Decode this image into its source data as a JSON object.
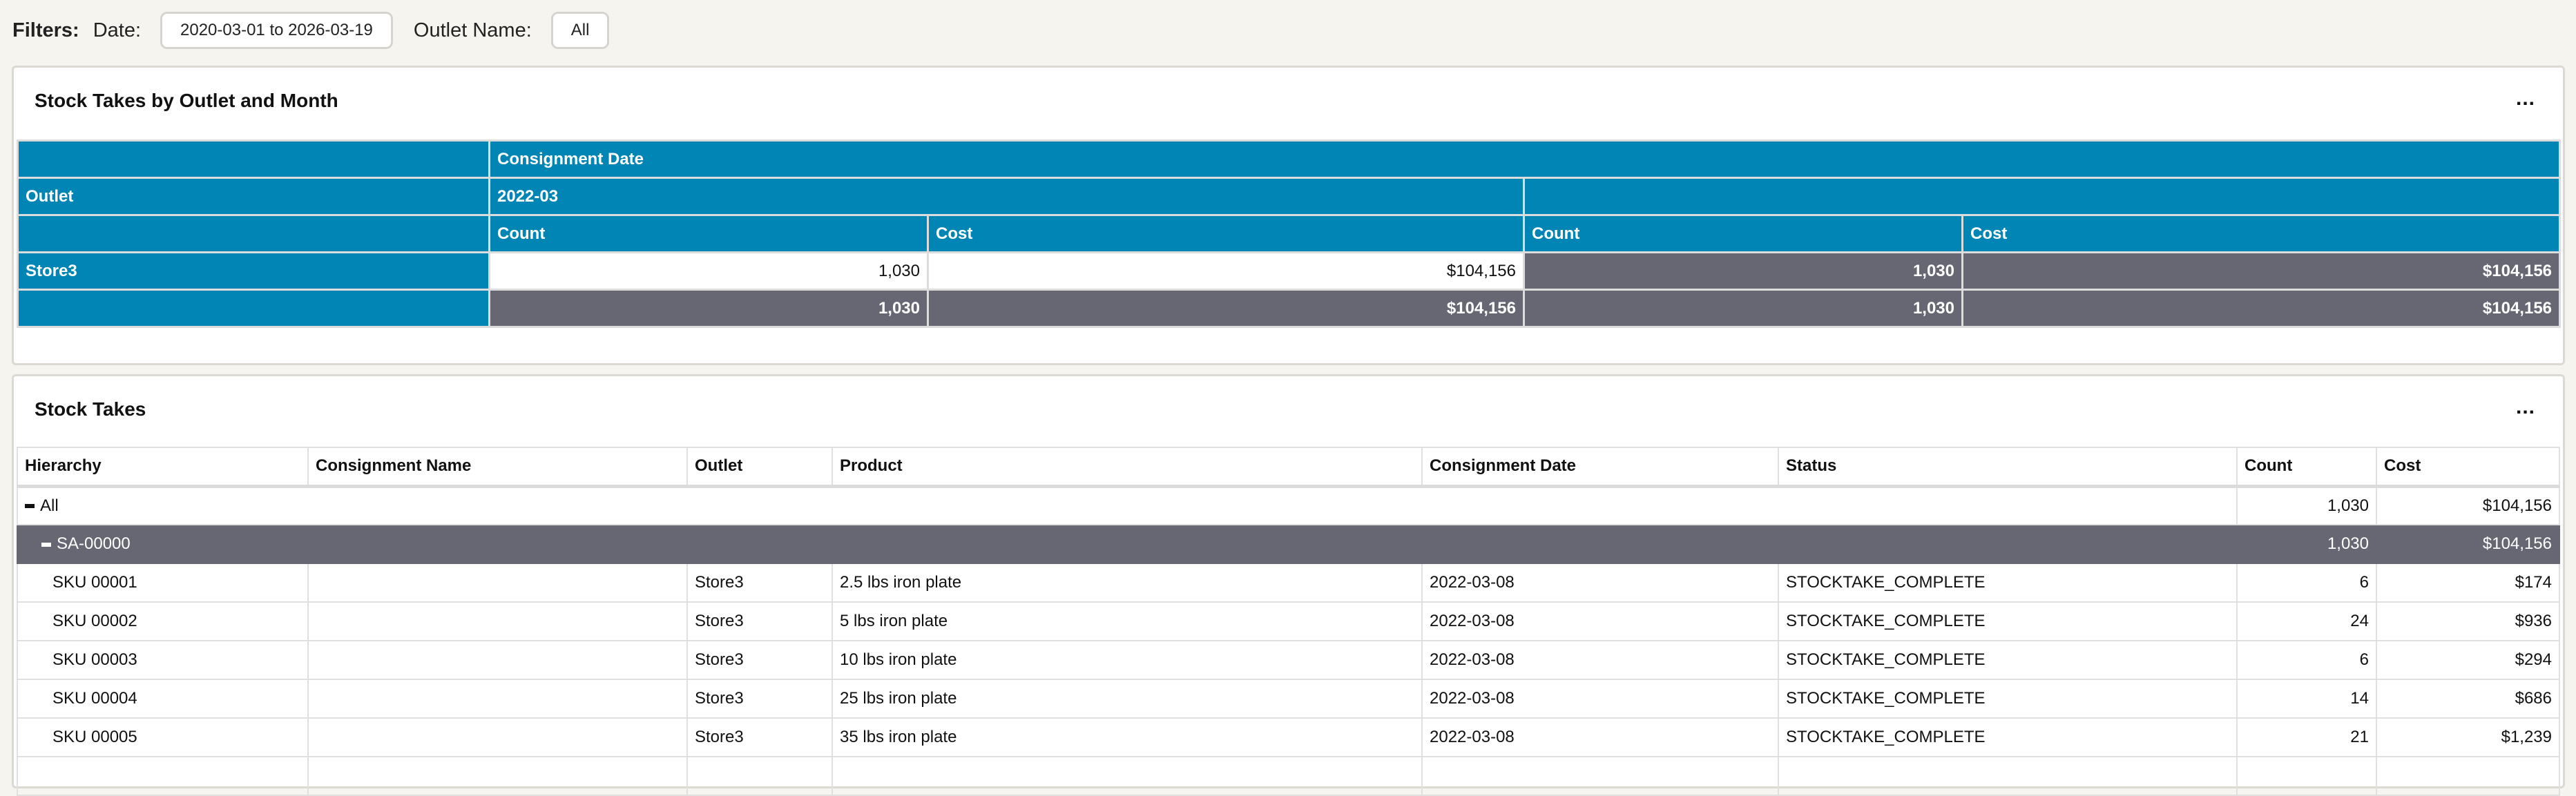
{
  "filters": {
    "title": "Filters:",
    "date_label": "Date:",
    "date_value": "2020-03-01 to 2026-03-19",
    "outlet_label": "Outlet Name:",
    "outlet_value": "All"
  },
  "pivot_panel": {
    "title": "Stock Takes by Outlet and Month",
    "menu": "...",
    "header_group": "Consignment Date",
    "row_header": "Outlet",
    "month": "2022-03",
    "count_label": "Count",
    "cost_label": "Cost",
    "rows": [
      {
        "outlet": "Store3",
        "count": "1,030",
        "cost": "$104,156",
        "total_count": "1,030",
        "total_cost": "$104,156"
      }
    ],
    "totals": {
      "count": "1,030",
      "cost": "$104,156",
      "total_count": "1,030",
      "total_cost": "$104,156"
    }
  },
  "table_panel": {
    "title": "Stock Takes",
    "menu": "...",
    "columns": [
      "Hierarchy",
      "Consignment Name",
      "Outlet",
      "Product",
      "Consignment Date",
      "Status",
      "Count",
      "Cost"
    ],
    "all_row": {
      "label": "All",
      "count": "1,030",
      "cost": "$104,156"
    },
    "group_row": {
      "label": "SA-00000",
      "count": "1,030",
      "cost": "$104,156"
    },
    "rows": [
      {
        "sku": "SKU 00001",
        "name": "",
        "outlet": "Store3",
        "product": "2.5 lbs iron plate",
        "date": "2022-03-08",
        "status": "STOCKTAKE_COMPLETE",
        "count": "6",
        "cost": "$174"
      },
      {
        "sku": "SKU 00002",
        "name": "",
        "outlet": "Store3",
        "product": "5 lbs iron plate",
        "date": "2022-03-08",
        "status": "STOCKTAKE_COMPLETE",
        "count": "24",
        "cost": "$936"
      },
      {
        "sku": "SKU 00003",
        "name": "",
        "outlet": "Store3",
        "product": "10 lbs iron plate",
        "date": "2022-03-08",
        "status": "STOCKTAKE_COMPLETE",
        "count": "6",
        "cost": "$294"
      },
      {
        "sku": "SKU 00004",
        "name": "",
        "outlet": "Store3",
        "product": "25 lbs iron plate",
        "date": "2022-03-08",
        "status": "STOCKTAKE_COMPLETE",
        "count": "14",
        "cost": "$686"
      },
      {
        "sku": "SKU 00005",
        "name": "",
        "outlet": "Store3",
        "product": "35 lbs iron plate",
        "date": "2022-03-08",
        "status": "STOCKTAKE_COMPLETE",
        "count": "21",
        "cost": "$1,239"
      }
    ]
  },
  "colors": {
    "header_blue": "#0085b5",
    "total_gray": "#676773",
    "background": "#f6f4ee"
  }
}
